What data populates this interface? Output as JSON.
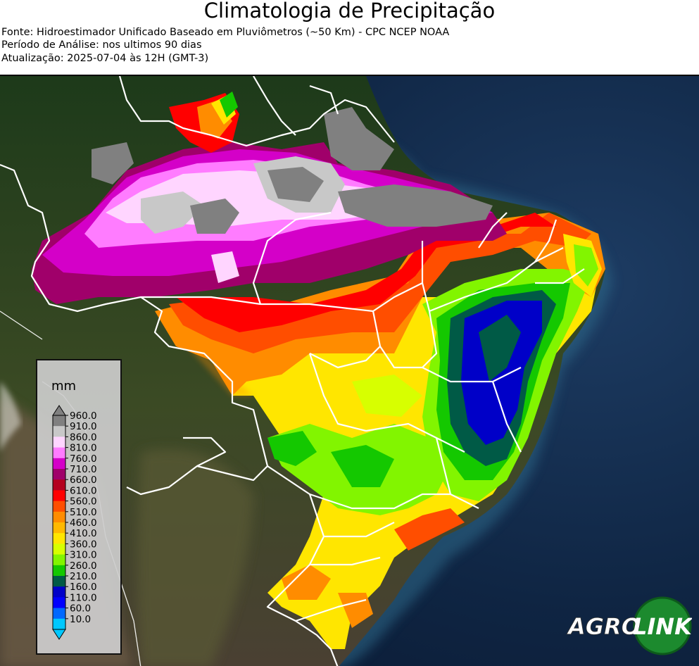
{
  "header": {
    "title": "Climatologia de Precipitação",
    "source": "Fonte: Hidroestimador Unificado Baseado em Pluviômetros (~50 Km) - CPC NCEP NOAA",
    "period": "Período de Análise: nos ultimos 90 dias",
    "updated": "Atualização: 2025-07-04 às 12H (GMT-3)"
  },
  "legend": {
    "unit": "mm",
    "levels": [
      "960.0",
      "910.0",
      "860.0",
      "810.0",
      "760.0",
      "710.0",
      "660.0",
      "610.0",
      "560.0",
      "510.0",
      "460.0",
      "410.0",
      "360.0",
      "310.0",
      "260.0",
      "210.0",
      "160.0",
      "110.0",
      "60.0",
      "10.0"
    ],
    "colors": [
      "#808080",
      "#c8c8c8",
      "#ffd5ff",
      "#ff7cff",
      "#d400c8",
      "#a0006a",
      "#b4001e",
      "#ff0000",
      "#ff4e00",
      "#ff8c00",
      "#ffb900",
      "#ffe600",
      "#d7ff00",
      "#82f500",
      "#14c800",
      "#005a46",
      "#0000c8",
      "#0000ff",
      "#0068ff",
      "#00c8ff"
    ]
  },
  "logo": {
    "left": "AGRO",
    "right": "LINK"
  }
}
